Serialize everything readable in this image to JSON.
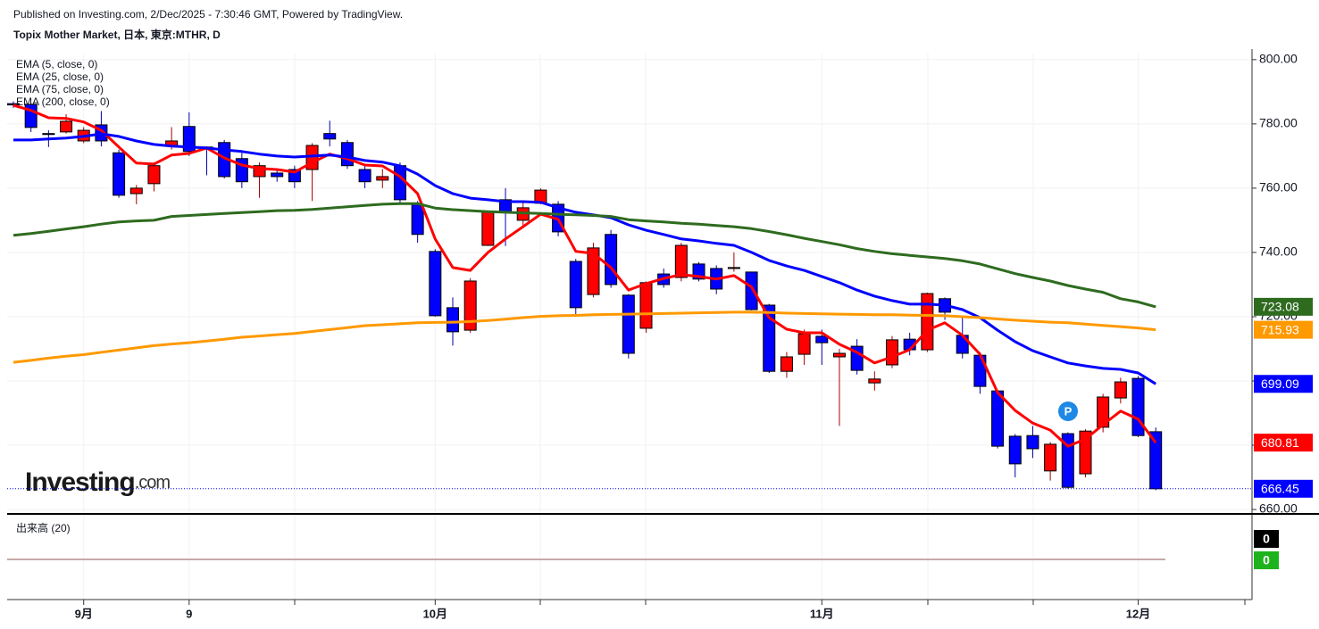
{
  "header": "Published on Investing.com, 2/Dec/2025 - 7:30:46 GMT, Powered by TradingView.",
  "watermark": [
    "Investing",
    ".com"
  ],
  "chart_data": {
    "type": "candlestick",
    "title": "Topix Mother Market, 日本, 東京:MTHR, D",
    "categories": [
      null,
      null,
      null,
      null,
      "9月",
      null,
      null,
      null,
      null,
      null,
      "9",
      null,
      null,
      null,
      null,
      null,
      null,
      null,
      null,
      null,
      null,
      null,
      null,
      null,
      "10月",
      null,
      null,
      null,
      null,
      null,
      null,
      null,
      null,
      null,
      null,
      null,
      null,
      null,
      null,
      null,
      null,
      null,
      null,
      null,
      null,
      null,
      "11月",
      null,
      null,
      null,
      null,
      null,
      null,
      null,
      null,
      null,
      null,
      null,
      null,
      null,
      null,
      null,
      null,
      null,
      "12月",
      null
    ],
    "open": [
      786.3,
      786.1,
      777,
      777.5,
      774.7,
      779.7,
      771,
      758.3,
      761.4,
      773.3,
      779.2,
      772.8,
      774.2,
      769.2,
      763.6,
      764.7,
      765.8,
      765.8,
      777,
      774.2,
      765.8,
      762.5,
      767,
      755,
      740.3,
      722.8,
      715.8,
      742.2,
      756.4,
      750,
      755.3,
      755,
      737.2,
      726.9,
      745.6,
      726.7,
      716.4,
      733.3,
      732.2,
      736.4,
      735,
      735,
      733.9,
      723.6,
      703,
      708.3,
      713.9,
      707.5,
      710.8,
      699.4,
      705,
      713,
      709.7,
      725.6,
      714.2,
      708,
      696.9,
      682.8,
      683,
      672,
      683.6,
      671.1,
      685.6,
      694.7,
      700.8,
      684.2
    ],
    "high": [
      787,
      786.5,
      778,
      783,
      779,
      784,
      772,
      761,
      768,
      779,
      783.6,
      773,
      775,
      771,
      768,
      766,
      767,
      774,
      781,
      775,
      767,
      766,
      768,
      756,
      741,
      726,
      732,
      753,
      760,
      756,
      760,
      756,
      738,
      743,
      747,
      727,
      731,
      735,
      743,
      737,
      736,
      740,
      734,
      724,
      709,
      716,
      716,
      710,
      713,
      703,
      714,
      715,
      727.5,
      726,
      720,
      709,
      697,
      683.5,
      686,
      681,
      684,
      685,
      696,
      701,
      701.5,
      685.5
    ],
    "low": [
      785,
      777.5,
      772.8,
      777,
      774,
      773,
      757,
      755,
      759,
      772,
      770,
      764,
      763,
      760,
      757,
      762,
      760,
      756,
      773,
      766,
      760,
      760,
      755,
      743,
      720,
      711,
      715,
      742,
      742,
      748,
      755,
      745,
      720,
      726,
      729,
      707,
      715,
      729,
      731,
      731,
      727,
      734,
      722,
      702.5,
      701,
      705,
      705,
      686,
      702,
      697,
      704,
      708,
      709,
      719,
      707,
      696,
      679,
      670,
      676,
      669,
      666.5,
      670,
      684,
      693,
      682.5,
      666
    ],
    "close": [
      785.9,
      778.9,
      776.7,
      780.8,
      778,
      774.7,
      757.8,
      760,
      767,
      774.7,
      771.4,
      772.5,
      763.6,
      762,
      767,
      763.6,
      762,
      773.3,
      775.3,
      767,
      762,
      763.6,
      756.4,
      745.6,
      720.3,
      715.3,
      731.1,
      752.5,
      752.5,
      753.9,
      759.4,
      746.4,
      722.8,
      741.4,
      730,
      708.6,
      730.6,
      730,
      742.2,
      731.7,
      728.6,
      735.3,
      722.2,
      703,
      707.5,
      714.7,
      711.9,
      708.6,
      703.3,
      700.6,
      712.8,
      709.7,
      727.2,
      721.4,
      708.6,
      698.3,
      679.7,
      674.2,
      678.9,
      680.3,
      666.9,
      684.4,
      695,
      699.7,
      683,
      666.45
    ],
    "up_color": "#ff0000",
    "down_color": "#0000ff",
    "series": [
      {
        "name": "EMA (5, close, 0)",
        "color": "#ff0000",
        "values": [
          785.8,
          784.2,
          781.9,
          781.7,
          780.6,
          778,
          772.8,
          767.8,
          767.5,
          770.3,
          770.8,
          772.5,
          769.4,
          767.2,
          766.1,
          765.8,
          765,
          768,
          770.6,
          769.2,
          767.2,
          766.9,
          763.6,
          758.3,
          744.2,
          735.3,
          734.4,
          740,
          744.2,
          748,
          751.9,
          750.3,
          740.3,
          739.7,
          735.3,
          728.3,
          730.3,
          731.9,
          733.1,
          732.5,
          731.7,
          732.8,
          729.2,
          719.7,
          716.1,
          715,
          715,
          711.4,
          708.9,
          705.6,
          707.5,
          709.7,
          715.8,
          718.1,
          714.2,
          708.3,
          696.4,
          690.8,
          686.9,
          684.7,
          679.7,
          681.9,
          686.4,
          690.6,
          688.1,
          680.81
        ]
      },
      {
        "name": "EMA (25, close, 0)",
        "color": "#0000ff",
        "values": [
          775,
          775,
          775.3,
          775.6,
          776.1,
          776.9,
          776.1,
          774.7,
          773.6,
          773.1,
          772.8,
          772.5,
          771.9,
          771.4,
          770.6,
          770,
          769.7,
          770,
          770.3,
          769.7,
          768.6,
          768.1,
          766.9,
          764.4,
          760.8,
          758.3,
          756.9,
          756.4,
          755.8,
          755.8,
          755.6,
          753.9,
          752.5,
          751.7,
          750.8,
          748.6,
          746.9,
          745.6,
          744.2,
          743.6,
          742.8,
          742.2,
          740,
          737.5,
          735.8,
          734.4,
          732.5,
          730.6,
          728.3,
          726.4,
          725,
          723.9,
          723.9,
          723.6,
          722.2,
          719.7,
          715.8,
          712.2,
          709.4,
          707.5,
          705.6,
          704.7,
          703.9,
          703.6,
          702.5,
          699.09
        ]
      },
      {
        "name": "EMA (75, close, 0)",
        "color": "#2e6b1f",
        "values": [
          745.3,
          745.9,
          746.6,
          747.3,
          748,
          748.8,
          749.5,
          749.8,
          750,
          751.2,
          751.5,
          751.8,
          752.1,
          752.4,
          752.7,
          753,
          753.1,
          753.4,
          753.8,
          754.2,
          754.6,
          755,
          755.2,
          755.2,
          753.8,
          753.3,
          753,
          752.7,
          752.5,
          752.3,
          752.1,
          751.9,
          751.7,
          751.5,
          751.2,
          750.2,
          749.8,
          749.5,
          749.1,
          748.8,
          748.4,
          748,
          747.4,
          746.5,
          745.5,
          744.4,
          743.4,
          742.4,
          741.2,
          740.3,
          739.6,
          739.1,
          738.6,
          738.1,
          737.4,
          736.4,
          734.9,
          733.4,
          732.2,
          731.1,
          729.7,
          728.6,
          727.6,
          725.6,
          724.6,
          723.08
        ]
      },
      {
        "name": "EMA (200, close, 0)",
        "color": "#ff9900",
        "values": [
          705.8,
          706.4,
          707.1,
          707.7,
          708.2,
          708.9,
          709.6,
          710.3,
          711,
          711.5,
          711.9,
          712.4,
          713,
          713.6,
          714,
          714.4,
          714.8,
          715.4,
          716,
          716.6,
          717.2,
          717.5,
          717.8,
          718.1,
          718.2,
          718.3,
          718.5,
          718.8,
          719.2,
          719.7,
          720.1,
          720.3,
          720.4,
          720.6,
          720.7,
          720.8,
          720.9,
          721,
          721.1,
          721.2,
          721.3,
          721.4,
          721.4,
          721.3,
          721.1,
          721,
          720.9,
          720.8,
          720.7,
          720.6,
          720.6,
          720.5,
          720.4,
          720.3,
          720,
          719.7,
          719.3,
          718.9,
          718.6,
          718.3,
          718.1,
          717.7,
          717.3,
          716.9,
          716.5,
          715.93
        ]
      }
    ],
    "ylim": [
      658.9,
      801.9
    ],
    "yticks": [
      {
        "value": 660,
        "label": "660.00"
      },
      {
        "value": 680,
        "label": "680.00"
      },
      {
        "value": 700,
        "label": "700.00"
      },
      {
        "value": 720,
        "label": "720.00"
      },
      {
        "value": 740,
        "label": "740.00"
      },
      {
        "value": 760,
        "label": "760.00"
      },
      {
        "value": 780,
        "label": "780.00"
      },
      {
        "value": 800,
        "label": "800.00"
      }
    ],
    "grid": true,
    "volume": {
      "title": "出来高 (20)",
      "values": [
        0,
        0
      ],
      "colors": [
        "#000000",
        "#1db31d"
      ]
    }
  }
}
